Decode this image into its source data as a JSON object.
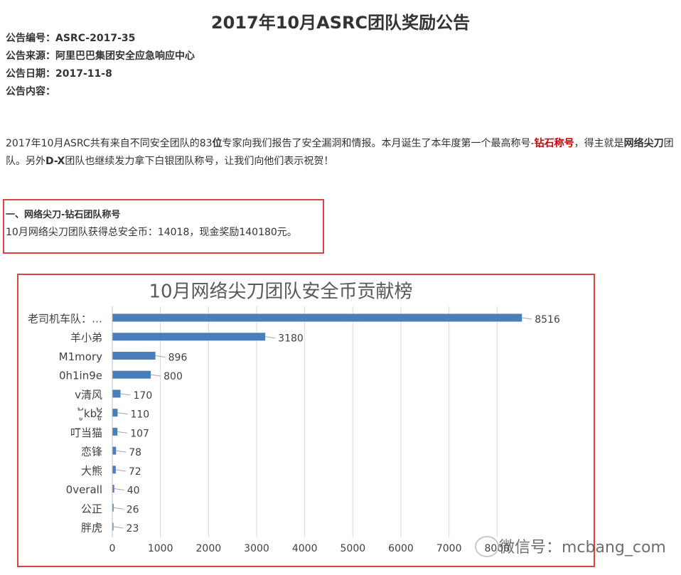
{
  "header": {
    "title": "2017年10月ASRC团队奖励公告",
    "meta": [
      "公告编号：ASRC-2017-35",
      "公告来源：阿里巴巴集团安全应急响应中心",
      "公告日期：2017-11-8",
      "公告内容："
    ]
  },
  "intro": {
    "runs": [
      "2017年10月ASRC共有来自不同安全团队的83",
      "位",
      "专家向我们报告了安全漏洞和情报。本月诞生了本年度第一个最高称号-",
      "钻石称号",
      "，得主就是",
      "网络尖刀",
      "团队。另外",
      "D-X",
      "团队也继续发力拿下白银团队称号，让我们向他们表示祝贺！"
    ]
  },
  "section": {
    "heading": "一、网络尖刀-钻石团队称号",
    "text": "10月网络尖刀团队获得总安全币：14018，现金奖励140180元。"
  },
  "chart_data": {
    "type": "hbar",
    "title": "10月网络尖刀团队安全币贡献榜",
    "categories": [
      "老司机车队：…",
      "羊小弟",
      "M1mory",
      "0h1in9e",
      "v清风",
      "ູ້kbzູ້",
      "叮当猫",
      "恋锋",
      "大熊",
      "0verall",
      "公正",
      "胖虎"
    ],
    "values": [
      8516,
      3180,
      896,
      800,
      170,
      110,
      107,
      78,
      72,
      40,
      26,
      23
    ],
    "color": "#4a7ebb",
    "xlim": [
      0,
      9000
    ],
    "xticks": [
      0,
      1000,
      2000,
      3000,
      4000,
      5000,
      6000,
      7000,
      8000
    ],
    "grid": true
  },
  "watermark": "微信号：mcbang_com"
}
